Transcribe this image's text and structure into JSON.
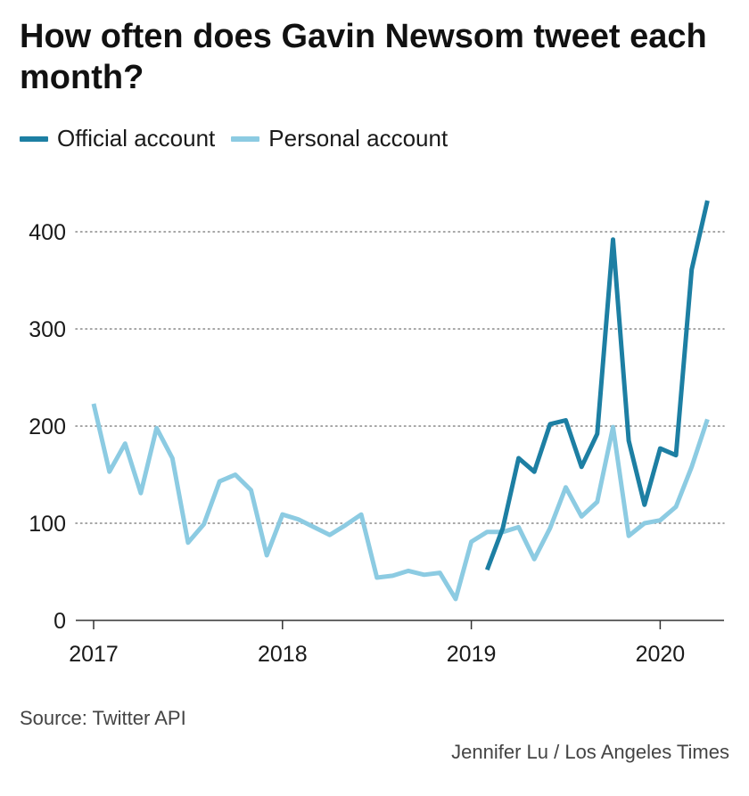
{
  "chart_data": {
    "type": "line",
    "title": "How often does Gavin Newsom tweet each month?",
    "x_ticks": [
      "2017",
      "2018",
      "2019",
      "2020"
    ],
    "y_ticks": [
      0,
      100,
      200,
      300,
      400
    ],
    "ylim": [
      0,
      440
    ],
    "xlim": [
      "2016-12",
      "2020-05"
    ],
    "grid": "horizontal dotted",
    "legend_position": "top-left",
    "series": [
      {
        "name": "Official account",
        "color": "#1d7fa3",
        "x": [
          "2019-02",
          "2019-03",
          "2019-04",
          "2019-05",
          "2019-06",
          "2019-07",
          "2019-08",
          "2019-09",
          "2019-10",
          "2019-11",
          "2019-12",
          "2020-01",
          "2020-02",
          "2020-03",
          "2020-04"
        ],
        "values": [
          52,
          95,
          167,
          153,
          202,
          206,
          158,
          192,
          392,
          185,
          119,
          177,
          170,
          361,
          432
        ]
      },
      {
        "name": "Personal account",
        "color": "#8ccbe2",
        "x": [
          "2017-01",
          "2017-02",
          "2017-03",
          "2017-04",
          "2017-05",
          "2017-06",
          "2017-07",
          "2017-08",
          "2017-09",
          "2017-10",
          "2017-11",
          "2017-12",
          "2018-01",
          "2018-02",
          "2018-03",
          "2018-04",
          "2018-05",
          "2018-06",
          "2018-07",
          "2018-08",
          "2018-09",
          "2018-10",
          "2018-11",
          "2018-12",
          "2019-01",
          "2019-02",
          "2019-03",
          "2019-04",
          "2019-05",
          "2019-06",
          "2019-07",
          "2019-08",
          "2019-09",
          "2019-10",
          "2019-11",
          "2019-12",
          "2020-01",
          "2020-02",
          "2020-03",
          "2020-04"
        ],
        "values": [
          223,
          153,
          182,
          131,
          198,
          167,
          80,
          99,
          143,
          150,
          134,
          67,
          109,
          104,
          96,
          88,
          98,
          109,
          44,
          46,
          51,
          47,
          49,
          22,
          81,
          91,
          91,
          96,
          63,
          95,
          137,
          107,
          122,
          199,
          87,
          100,
          103,
          117,
          158,
          207
        ]
      }
    ]
  },
  "source": "Source: Twitter API",
  "credit": "Jennifer Lu / Los Angeles Times"
}
